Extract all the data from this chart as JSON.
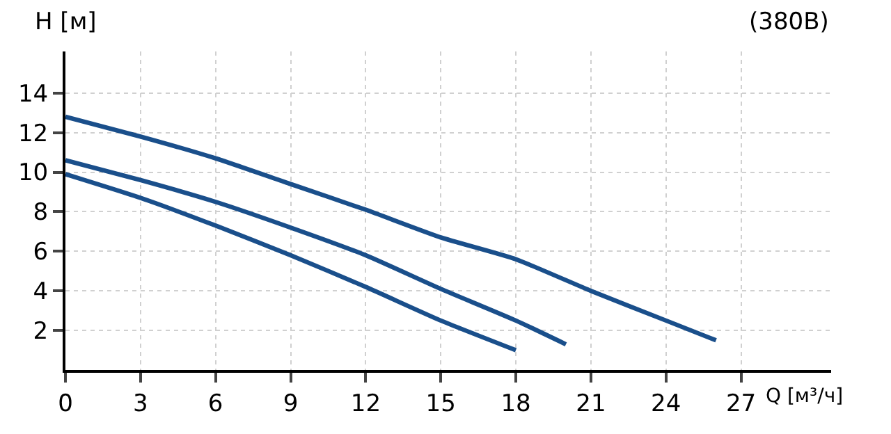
{
  "chart_data": {
    "type": "line",
    "title": "(380В)",
    "xlabel": "Q [м³/ч]",
    "ylabel": "H [м]",
    "series": [
      {
        "color": "#1a4f8b",
        "x": [
          0,
          3,
          6,
          9,
          12,
          15,
          18,
          21,
          24,
          26
        ],
        "values": [
          12.8,
          11.8,
          10.7,
          9.4,
          8.1,
          6.7,
          5.6,
          4.0,
          2.5,
          1.5
        ]
      },
      {
        "color": "#1a4f8b",
        "x": [
          0,
          3,
          6,
          9,
          12,
          15,
          18,
          20
        ],
        "values": [
          10.6,
          9.6,
          8.5,
          7.2,
          5.8,
          4.1,
          2.5,
          1.3
        ]
      },
      {
        "color": "#1a4f8b",
        "x": [
          0,
          3,
          6,
          9,
          12,
          15,
          18
        ],
        "values": [
          9.9,
          8.7,
          7.3,
          5.8,
          4.2,
          2.5,
          1.0
        ]
      }
    ],
    "xlim": [
      0,
      30.6
    ],
    "ylim": [
      0,
      16.1
    ],
    "xticks": [
      0,
      3,
      6,
      9,
      12,
      15,
      18,
      21,
      24,
      27
    ],
    "yticks": [
      2,
      4,
      6,
      8,
      10,
      12,
      14
    ],
    "grid": true,
    "marker": "none",
    "line_style": "solid"
  }
}
